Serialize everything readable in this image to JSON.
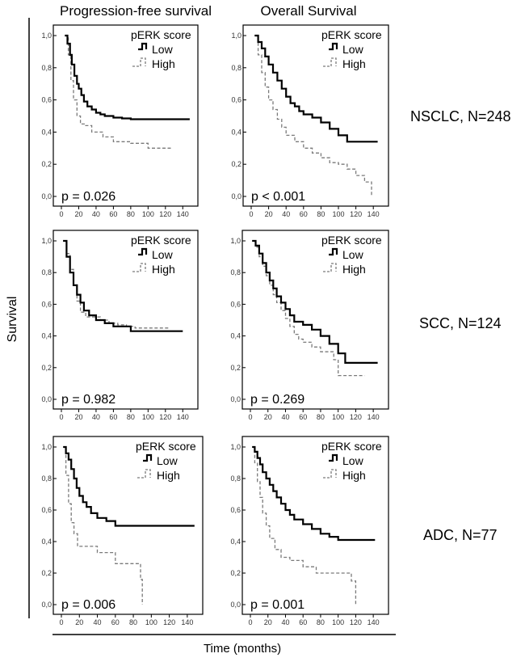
{
  "figure": {
    "col_titles": [
      "Progression-free survival",
      "Overall Survival"
    ],
    "row_labels": [
      "NSCLC, N=248",
      "SCC, N=124",
      "ADC, N=77"
    ],
    "ylabel": "Survival",
    "xlabel": "Time (months)"
  },
  "colors": {
    "low": "#000000",
    "high": "#7a7a7a",
    "axis": "#000000"
  },
  "chart_data": [
    {
      "type": "line",
      "panel": "NSCLC progression-free survival",
      "legend_title": "pERK score",
      "legend_labels": [
        "Low",
        "High"
      ],
      "p_value": "p = 0.026",
      "xlim": [
        0,
        150
      ],
      "xticks": [
        0,
        20,
        40,
        60,
        80,
        100,
        120,
        140
      ],
      "xtick_labels": [
        "0",
        "20",
        "40",
        "60",
        "80",
        "100",
        "120",
        "140"
      ],
      "ylim": [
        0,
        1
      ],
      "yticks": [
        0,
        0.2,
        0.4,
        0.6,
        0.8,
        1.0
      ],
      "ytick_labels": [
        "0,0",
        "0,2",
        "0,4",
        "0,6",
        "0,8",
        "1,0"
      ],
      "series": [
        {
          "name": "Low",
          "x": [
            4,
            7,
            10,
            12,
            15,
            18,
            20,
            23,
            26,
            30,
            35,
            40,
            45,
            50,
            60,
            70,
            80,
            148
          ],
          "y": [
            1.0,
            0.95,
            0.88,
            0.82,
            0.75,
            0.7,
            0.67,
            0.63,
            0.59,
            0.56,
            0.54,
            0.52,
            0.51,
            0.5,
            0.49,
            0.485,
            0.48,
            0.48
          ]
        },
        {
          "name": "High",
          "x": [
            4,
            8,
            11,
            14,
            18,
            22,
            28,
            35,
            48,
            60,
            80,
            100,
            128
          ],
          "y": [
            1.0,
            0.88,
            0.72,
            0.6,
            0.5,
            0.45,
            0.44,
            0.4,
            0.37,
            0.34,
            0.33,
            0.3,
            0.3
          ]
        }
      ]
    },
    {
      "type": "line",
      "panel": "NSCLC overall survival",
      "legend_title": "pERK score",
      "legend_labels": [
        "Low",
        "High"
      ],
      "p_value": "p < 0.001",
      "xlim": [
        0,
        150
      ],
      "xticks": [
        0,
        20,
        40,
        60,
        80,
        100,
        120,
        140
      ],
      "xtick_labels": [
        "0",
        "20",
        "40",
        "60",
        "80",
        "100",
        "120",
        "140"
      ],
      "ylim": [
        0,
        1
      ],
      "yticks": [
        0,
        0.2,
        0.4,
        0.6,
        0.8,
        1.0
      ],
      "ytick_labels": [
        "0,0",
        "0,2",
        "0,4",
        "0,6",
        "0,8",
        "1,0"
      ],
      "series": [
        {
          "name": "Low",
          "x": [
            4,
            8,
            12,
            16,
            20,
            25,
            30,
            35,
            40,
            45,
            50,
            55,
            60,
            70,
            80,
            90,
            100,
            110,
            145
          ],
          "y": [
            1.0,
            0.96,
            0.92,
            0.87,
            0.82,
            0.77,
            0.72,
            0.67,
            0.62,
            0.58,
            0.56,
            0.53,
            0.51,
            0.49,
            0.46,
            0.42,
            0.38,
            0.34,
            0.34
          ]
        },
        {
          "name": "High",
          "x": [
            4,
            8,
            12,
            16,
            20,
            25,
            30,
            35,
            40,
            50,
            60,
            70,
            80,
            90,
            100,
            110,
            120,
            130,
            138
          ],
          "y": [
            1.0,
            0.88,
            0.77,
            0.68,
            0.6,
            0.54,
            0.48,
            0.43,
            0.38,
            0.34,
            0.3,
            0.27,
            0.24,
            0.21,
            0.2,
            0.17,
            0.13,
            0.09,
            0.0
          ]
        }
      ]
    },
    {
      "type": "line",
      "panel": "SCC progression-free survival",
      "legend_title": "pERK score",
      "legend_labels": [
        "Low",
        "High"
      ],
      "p_value": "p = 0.982",
      "xlim": [
        0,
        150
      ],
      "xticks": [
        0,
        20,
        40,
        60,
        80,
        100,
        120,
        140
      ],
      "xtick_labels": [
        "0",
        "20",
        "40",
        "60",
        "80",
        "100",
        "120",
        "140"
      ],
      "ylim": [
        0,
        1
      ],
      "yticks": [
        0,
        0.2,
        0.4,
        0.6,
        0.8,
        1.0
      ],
      "ytick_labels": [
        "0,0",
        "0,2",
        "0,4",
        "0,6",
        "0,8",
        "1,0"
      ],
      "series": [
        {
          "name": "Low",
          "x": [
            2,
            6,
            10,
            14,
            18,
            22,
            26,
            32,
            40,
            50,
            60,
            80,
            140
          ],
          "y": [
            1.0,
            0.9,
            0.8,
            0.72,
            0.66,
            0.61,
            0.56,
            0.53,
            0.5,
            0.48,
            0.46,
            0.43,
            0.43
          ]
        },
        {
          "name": "High",
          "x": [
            2,
            6,
            10,
            14,
            18,
            22,
            28,
            36,
            45,
            55,
            65,
            75,
            85,
            100,
            125
          ],
          "y": [
            1.0,
            0.92,
            0.82,
            0.72,
            0.62,
            0.55,
            0.52,
            0.52,
            0.5,
            0.48,
            0.47,
            0.46,
            0.45,
            0.45,
            0.45
          ]
        }
      ]
    },
    {
      "type": "line",
      "panel": "SCC overall survival",
      "legend_title": "pERK score",
      "legend_labels": [
        "Low",
        "High"
      ],
      "p_value": "p = 0.269",
      "xlim": [
        0,
        150
      ],
      "xticks": [
        0,
        20,
        40,
        60,
        80,
        100,
        120,
        140
      ],
      "xtick_labels": [
        "0",
        "20",
        "40",
        "60",
        "80",
        "100",
        "120",
        "140"
      ],
      "ylim": [
        0,
        1
      ],
      "yticks": [
        0,
        0.2,
        0.4,
        0.6,
        0.8,
        1.0
      ],
      "ytick_labels": [
        "0,0",
        "0,2",
        "0,4",
        "0,6",
        "0,8",
        "1,0"
      ],
      "series": [
        {
          "name": "Low",
          "x": [
            2,
            6,
            10,
            14,
            18,
            22,
            26,
            30,
            35,
            40,
            45,
            50,
            60,
            70,
            80,
            90,
            100,
            108,
            145
          ],
          "y": [
            1.0,
            0.97,
            0.92,
            0.86,
            0.8,
            0.75,
            0.7,
            0.65,
            0.61,
            0.57,
            0.53,
            0.49,
            0.47,
            0.44,
            0.4,
            0.35,
            0.29,
            0.23,
            0.23
          ]
        },
        {
          "name": "High",
          "x": [
            2,
            6,
            10,
            14,
            18,
            22,
            26,
            30,
            35,
            40,
            45,
            50,
            55,
            60,
            70,
            80,
            95,
            100,
            120,
            130
          ],
          "y": [
            1.0,
            0.96,
            0.9,
            0.84,
            0.78,
            0.72,
            0.66,
            0.61,
            0.56,
            0.51,
            0.46,
            0.41,
            0.38,
            0.36,
            0.33,
            0.3,
            0.25,
            0.15,
            0.15,
            0.15
          ]
        }
      ]
    },
    {
      "type": "line",
      "panel": "ADC progression-free survival",
      "legend_title": "pERK score",
      "legend_labels": [
        "Low",
        "High"
      ],
      "p_value": "p = 0.006",
      "xlim": [
        0,
        150
      ],
      "xticks": [
        0,
        20,
        40,
        60,
        80,
        100,
        120,
        140
      ],
      "xtick_labels": [
        "0",
        "20",
        "40",
        "60",
        "80",
        "100",
        "120",
        "140"
      ],
      "ylim": [
        0,
        1
      ],
      "yticks": [
        0,
        0.2,
        0.4,
        0.6,
        0.8,
        1.0
      ],
      "ytick_labels": [
        "0,0",
        "0,2",
        "0,4",
        "0,6",
        "0,8",
        "1,0"
      ],
      "series": [
        {
          "name": "Low",
          "x": [
            2,
            5,
            8,
            11,
            14,
            17,
            20,
            24,
            28,
            33,
            40,
            50,
            60,
            148
          ],
          "y": [
            1.0,
            0.96,
            0.92,
            0.86,
            0.8,
            0.74,
            0.69,
            0.65,
            0.62,
            0.58,
            0.55,
            0.53,
            0.5,
            0.5
          ]
        },
        {
          "name": "High",
          "x": [
            2,
            5,
            8,
            11,
            14,
            18,
            40,
            60,
            88,
            90
          ],
          "y": [
            1.0,
            0.82,
            0.64,
            0.52,
            0.45,
            0.37,
            0.33,
            0.26,
            0.16,
            0.0
          ]
        }
      ]
    },
    {
      "type": "line",
      "panel": "ADC overall survival",
      "legend_title": "pERK score",
      "legend_labels": [
        "Low",
        "High"
      ],
      "p_value": "p = 0.001",
      "xlim": [
        0,
        150
      ],
      "xticks": [
        0,
        20,
        40,
        60,
        80,
        100,
        120,
        140
      ],
      "xtick_labels": [
        "0",
        "20",
        "40",
        "60",
        "80",
        "100",
        "120",
        "140"
      ],
      "ylim": [
        0,
        1
      ],
      "yticks": [
        0,
        0.2,
        0.4,
        0.6,
        0.8,
        1.0
      ],
      "ytick_labels": [
        "0,0",
        "0,2",
        "0,4",
        "0,6",
        "0,8",
        "1,0"
      ],
      "series": [
        {
          "name": "Low",
          "x": [
            2,
            5,
            8,
            11,
            14,
            18,
            22,
            26,
            30,
            35,
            40,
            45,
            50,
            60,
            70,
            80,
            90,
            100,
            142
          ],
          "y": [
            1.0,
            0.97,
            0.93,
            0.89,
            0.84,
            0.8,
            0.76,
            0.72,
            0.68,
            0.64,
            0.6,
            0.57,
            0.54,
            0.51,
            0.48,
            0.45,
            0.43,
            0.41,
            0.41
          ]
        },
        {
          "name": "High",
          "x": [
            2,
            5,
            8,
            11,
            14,
            18,
            22,
            28,
            35,
            45,
            60,
            75,
            95,
            115,
            120
          ],
          "y": [
            1.0,
            0.9,
            0.78,
            0.68,
            0.58,
            0.5,
            0.42,
            0.35,
            0.3,
            0.28,
            0.24,
            0.2,
            0.2,
            0.15,
            0.0
          ]
        }
      ]
    }
  ]
}
